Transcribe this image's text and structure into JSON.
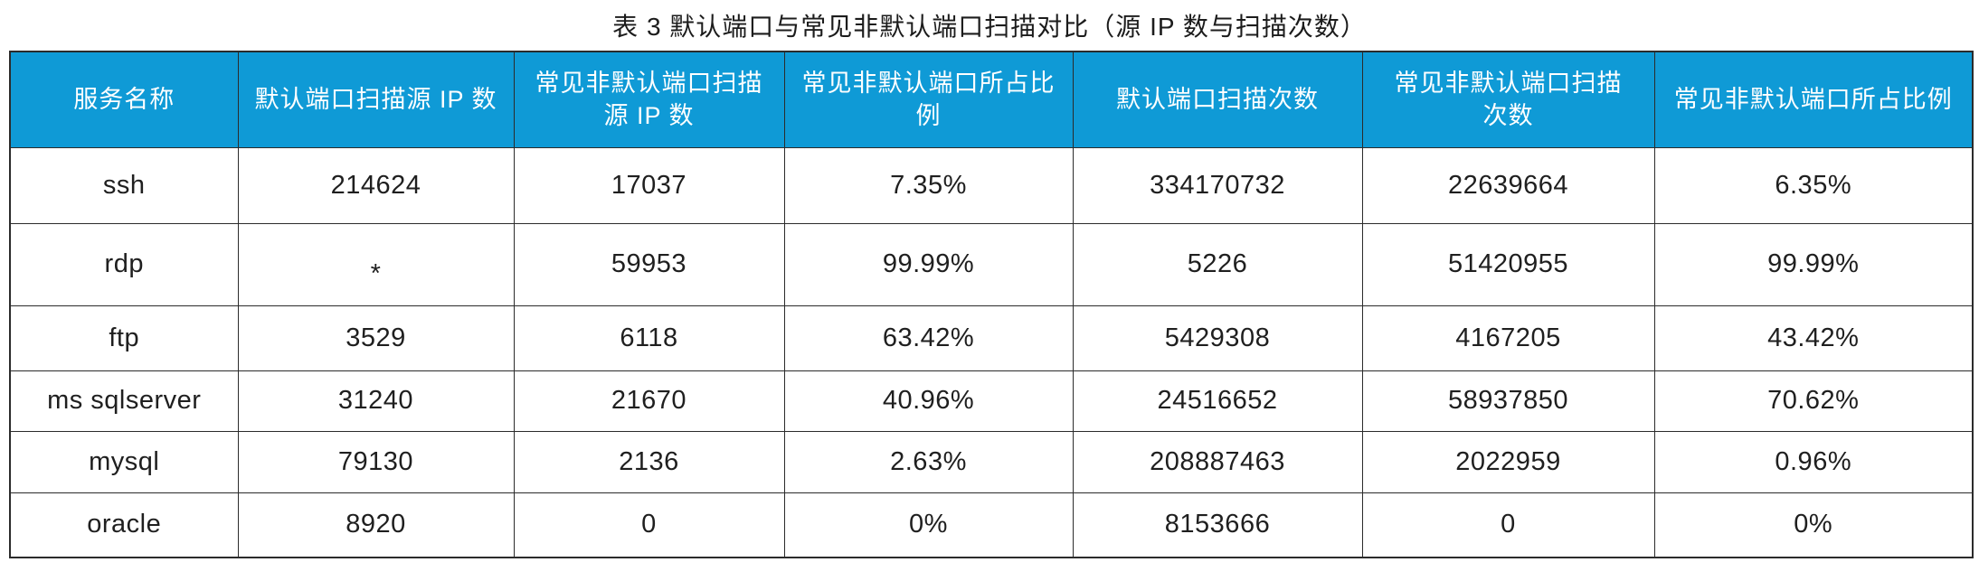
{
  "title": "表 3 默认端口与常见非默认端口扫描对比（源 IP 数与扫描次数）",
  "colors": {
    "header_background": "#0f9ad6",
    "header_text": "#ffffff",
    "body_text": "#1f1f1f",
    "border": "#2b2b2b"
  },
  "table": {
    "headers": [
      "服务名称",
      "默认端口扫描源 IP 数",
      "常见非默认端口扫描\n源 IP 数",
      "常见非默认端口所占比\n例",
      "默认端口扫描次数",
      "常见非默认端口扫描\n次数",
      "常见非默认端口所占比例"
    ],
    "rows": [
      [
        "ssh",
        "214624",
        "17037",
        "7.35%",
        "334170732",
        "22639664",
        "6.35%"
      ],
      [
        "rdp",
        "*",
        "59953",
        "99.99%",
        "5226",
        "51420955",
        "99.99%"
      ],
      [
        "ftp",
        "3529",
        "6118",
        "63.42%",
        "5429308",
        "4167205",
        "43.42%"
      ],
      [
        "ms sqlserver",
        "31240",
        "21670",
        "40.96%",
        "24516652",
        "58937850",
        "70.62%"
      ],
      [
        "mysql",
        "79130",
        "2136",
        "2.63%",
        "208887463",
        "2022959",
        "0.96%"
      ],
      [
        "oracle",
        "8920",
        "0",
        "0%",
        "8153666",
        "0",
        "0%"
      ]
    ]
  },
  "chart_data": {
    "type": "table",
    "title": "表 3 默认端口与常见非默认端口扫描对比（源 IP 数与扫描次数）",
    "columns": [
      "服务名称",
      "默认端口扫描源 IP 数",
      "常见非默认端口扫描源 IP 数",
      "常见非默认端口所占比例",
      "默认端口扫描次数",
      "常见非默认端口扫描次数",
      "常见非默认端口所占比例"
    ],
    "rows": [
      [
        "ssh",
        "214624",
        "17037",
        "7.35%",
        "334170732",
        "22639664",
        "6.35%"
      ],
      [
        "rdp",
        "*",
        "59953",
        "99.99%",
        "5226",
        "51420955",
        "99.99%"
      ],
      [
        "ftp",
        "3529",
        "6118",
        "63.42%",
        "5429308",
        "4167205",
        "43.42%"
      ],
      [
        "ms sqlserver",
        "31240",
        "21670",
        "40.96%",
        "24516652",
        "58937850",
        "70.62%"
      ],
      [
        "mysql",
        "79130",
        "2136",
        "2.63%",
        "208887463",
        "2022959",
        "0.96%"
      ],
      [
        "oracle",
        "8920",
        "0",
        "0%",
        "8153666",
        "0",
        "0%"
      ]
    ]
  }
}
